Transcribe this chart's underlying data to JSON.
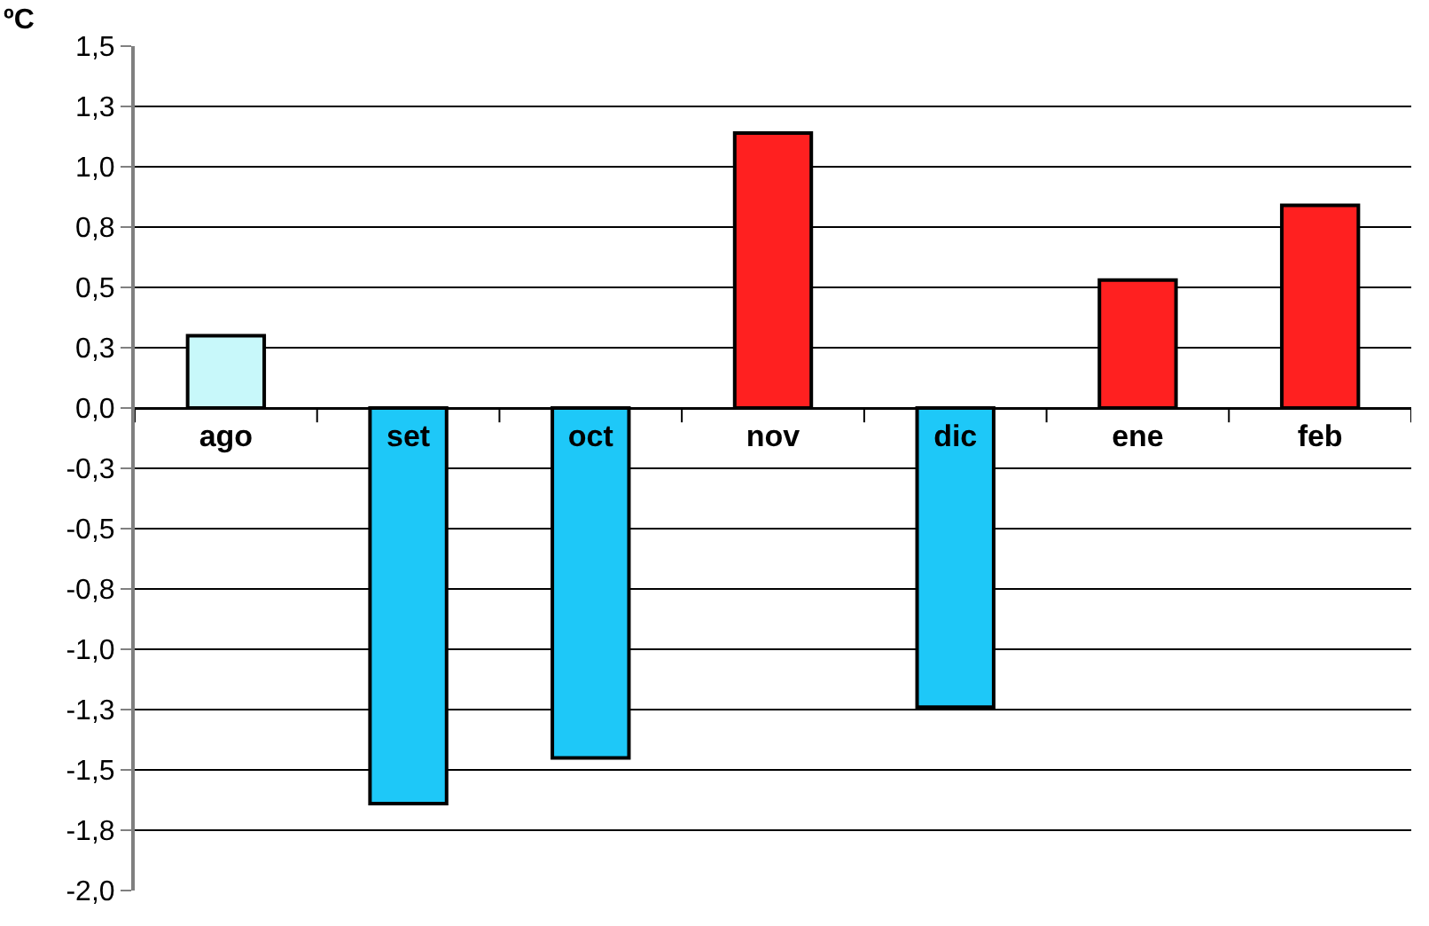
{
  "chart_data": {
    "type": "bar",
    "ylabel": "ºC",
    "categories": [
      "ago",
      "set",
      "oct",
      "nov",
      "dic",
      "ene",
      "feb"
    ],
    "values": [
      0.3,
      -1.64,
      -1.45,
      1.14,
      -1.24,
      0.53,
      0.84
    ],
    "colors": [
      "#c8f8fa",
      "#1ec8f8",
      "#1ec8f8",
      "#ff2020",
      "#1ec8f8",
      "#ff2020",
      "#ff2020"
    ],
    "ylim": [
      -2.0,
      1.5
    ],
    "yticks": [
      {
        "value": -2.0,
        "label": "-2,0"
      },
      {
        "value": -1.75,
        "label": "-1,8"
      },
      {
        "value": -1.5,
        "label": "-1,5"
      },
      {
        "value": -1.25,
        "label": "-1,3"
      },
      {
        "value": -1.0,
        "label": "-1,0"
      },
      {
        "value": -0.75,
        "label": "-0,8"
      },
      {
        "value": -0.5,
        "label": "-0,5"
      },
      {
        "value": -0.25,
        "label": "-0,3"
      },
      {
        "value": 0.0,
        "label": "0,0"
      },
      {
        "value": 0.25,
        "label": "0,3"
      },
      {
        "value": 0.5,
        "label": "0,5"
      },
      {
        "value": 0.75,
        "label": "0,8"
      },
      {
        "value": 1.0,
        "label": "1,0"
      },
      {
        "value": 1.25,
        "label": "1,3"
      },
      {
        "value": 1.5,
        "label": "1,5"
      }
    ],
    "grid": "y"
  }
}
